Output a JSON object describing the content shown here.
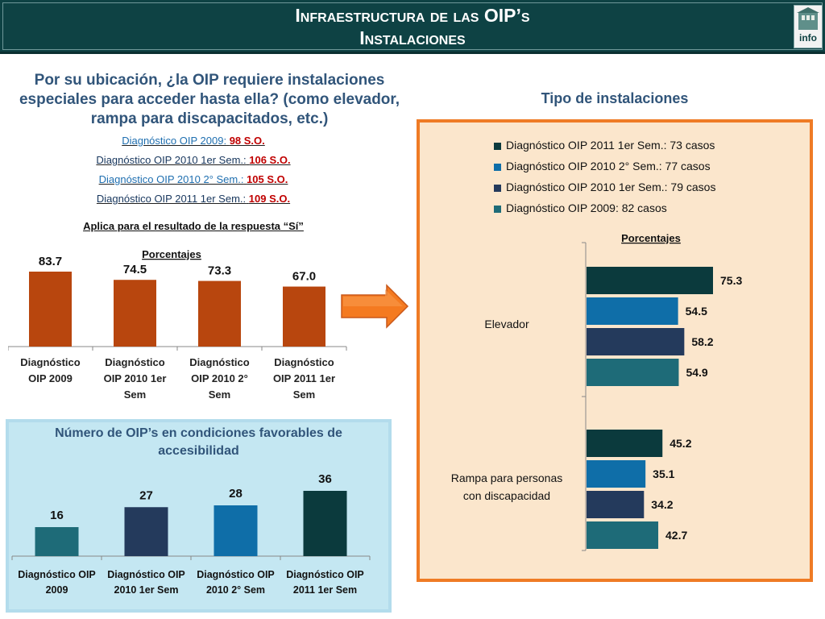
{
  "header": {
    "title_line1": "Infraestructura de las OIP’s",
    "title_line2": "Instalaciones",
    "logo_text": "info"
  },
  "question": {
    "line1": "Por su ubicación, ¿la OIP requiere instalaciones",
    "line2": "especiales para acceder hasta ella? (como elevador,",
    "line3": "rampa para discapacitados, etc.)"
  },
  "stats": [
    {
      "label": "Diagnóstico OIP 2009:",
      "value": "98 S.O."
    },
    {
      "label": "Diagnóstico OIP 2010 1er Sem.:",
      "value": "106 S.O."
    },
    {
      "label": "Diagnóstico OIP 2010 2° Sem.:",
      "value": "105 S.O."
    },
    {
      "label": "Diagnóstico OIP 2011 1er Sem.:",
      "value": "109 S.O."
    }
  ],
  "applies_note": "Aplica para el resultado de la respuesta “Sí”",
  "right_title": "Tipo de instalaciones",
  "bottom_left_title_line1": "Número de OIP’s en condiciones favorables de",
  "bottom_left_title_line2": "accesibilidad",
  "colors": {
    "header_bg": "#0e4244",
    "bar_orange": "#b8460e",
    "arrow": "#f47a20",
    "series_2011": "#0b3a3d",
    "series_2010_2": "#0f6ea8",
    "series_2010_1": "#243a5c",
    "series_2009": "#1e6b78",
    "panel_orange_border": "#ef7b25",
    "panel_blue_bg": "#c4e7f2"
  },
  "chart_data": [
    {
      "type": "bar",
      "title": "Porcentajes",
      "categories": [
        "Diagnóstico OIP 2009",
        "Diagnóstico OIP 2010 1er Sem",
        "Diagnóstico OIP 2010 2° Sem",
        "Diagnóstico OIP 2011 1er Sem"
      ],
      "values": [
        83.7,
        74.5,
        73.3,
        67.0
      ],
      "value_labels": [
        "83.7",
        "74.5",
        "73.3",
        "67.0"
      ],
      "ylim": [
        0,
        100
      ],
      "grid": false
    },
    {
      "type": "bar",
      "orientation": "horizontal",
      "title": "Porcentajes",
      "categories": [
        "Elevador",
        "Rampa para personas con discapacidad"
      ],
      "series": [
        {
          "name": "Diagnóstico OIP 2011 1er Sem.: 73 casos",
          "values": [
            75.3,
            45.2
          ],
          "value_labels": [
            "75.3",
            "45.2"
          ]
        },
        {
          "name": "Diagnóstico OIP 2010 2° Sem.: 77 casos",
          "values": [
            54.5,
            35.1
          ],
          "value_labels": [
            "54.5",
            "35.1"
          ]
        },
        {
          "name": "Diagnóstico OIP 2010 1er Sem.: 79 casos",
          "values": [
            58.2,
            34.2
          ],
          "value_labels": [
            "58.2",
            "34.2"
          ]
        },
        {
          "name": "Diagnóstico OIP 2009: 82 casos",
          "values": [
            54.9,
            42.7
          ],
          "value_labels": [
            "54.9",
            "42.7"
          ]
        }
      ],
      "legend": "top",
      "xlim": [
        0,
        100
      ],
      "grid": false
    },
    {
      "type": "bar",
      "title": "Número de OIP’s en condiciones favorables de accesibilidad",
      "categories": [
        "Diagnóstico OIP 2009",
        "Diagnóstico OIP 2010 1er Sem",
        "Diagnóstico OIP 2010 2° Sem",
        "Diagnóstico OIP 2011 1er Sem"
      ],
      "values": [
        16,
        27,
        28,
        36
      ],
      "value_labels": [
        "16",
        "27",
        "28",
        "36"
      ],
      "ylim": [
        0,
        40
      ],
      "grid": false
    }
  ]
}
